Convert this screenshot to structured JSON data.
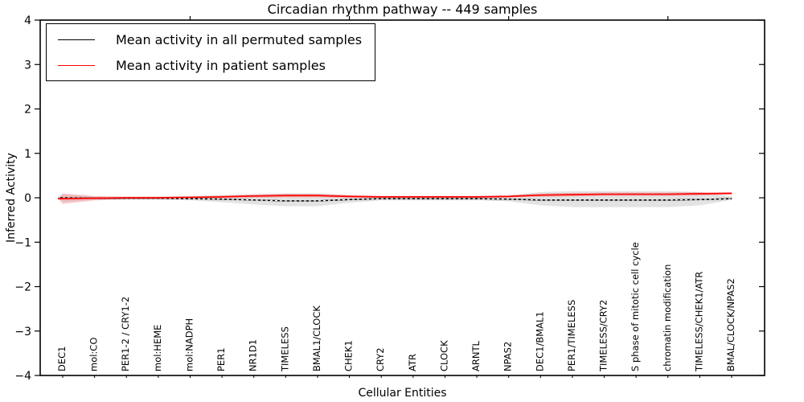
{
  "title": "Circadian rhythm pathway -- 449 samples",
  "legend": {
    "items": [
      {
        "label": "Mean activity in all permuted samples",
        "color": "#000000"
      },
      {
        "label": "Mean activity in patient samples",
        "color": "#ff0000"
      }
    ],
    "position": "upper left"
  },
  "chart_data": {
    "type": "line",
    "title": "Circadian rhythm pathway -- 449 samples",
    "xlabel": "Cellular Entities",
    "ylabel": "Inferred Activity",
    "ylim": [
      -4,
      4
    ],
    "ytick_values": [
      4,
      3,
      2,
      1,
      0,
      -1,
      -2,
      -3,
      -4
    ],
    "ytick_labels": [
      "4",
      "3",
      "2",
      "1",
      "0",
      "−1",
      "−2",
      "−3",
      "−4"
    ],
    "grid": false,
    "legend_position": "upper left",
    "categories": [
      "DEC1",
      "mol:CO",
      "PER1-2 / CRY1-2",
      "mol:HEME",
      "mol:NADPH",
      "PER1",
      "NR1D1",
      "TIMELESS",
      "BMAL1/CLOCK",
      "CHEK1",
      "CRY2",
      "ATR",
      "CLOCK",
      "ARNTL",
      "NPAS2",
      "DEC1/BMAL1",
      "PER1/TIMELESS",
      "TIMELESS/CRY2",
      "S phase of mitotic cell cycle",
      "chromatin modification",
      "TIMELESS/CHEK1/ATR",
      "BMAL/CLOCK/NPAS2"
    ],
    "top_tick_indices": [
      4,
      9,
      14,
      19
    ],
    "series": [
      {
        "name": "Mean activity in all permuted samples",
        "color": "#000000",
        "dash_overlay_color": "#ffffff",
        "band_color": "#d9d9d9",
        "band_opacity": 0.75,
        "values": [
          0,
          -0.01,
          -0.01,
          -0.01,
          -0.02,
          -0.03,
          -0.05,
          -0.07,
          -0.07,
          -0.04,
          -0.02,
          -0.02,
          -0.02,
          -0.02,
          -0.03,
          -0.05,
          -0.05,
          -0.05,
          -0.05,
          -0.05,
          -0.04,
          -0.02
        ],
        "band_upper": [
          0.08,
          0.03,
          0.03,
          0.03,
          0.04,
          0.06,
          0.08,
          0.1,
          0.1,
          0.06,
          0.04,
          0.04,
          0.04,
          0.04,
          0.05,
          0.13,
          0.15,
          0.15,
          0.15,
          0.15,
          0.13,
          0.03
        ],
        "band_lower": [
          -0.1,
          -0.05,
          -0.04,
          -0.04,
          -0.06,
          -0.1,
          -0.15,
          -0.19,
          -0.19,
          -0.11,
          -0.06,
          -0.06,
          -0.06,
          -0.06,
          -0.08,
          -0.17,
          -0.21,
          -0.21,
          -0.21,
          -0.21,
          -0.17,
          -0.05
        ]
      },
      {
        "name": "Mean activity in patient samples",
        "color": "#ff0000",
        "band_color": "#ff0000",
        "band_opacity": 0.18,
        "values": [
          -0.02,
          -0.01,
          0,
          0,
          0.01,
          0.02,
          0.04,
          0.05,
          0.05,
          0.03,
          0.02,
          0.02,
          0.02,
          0.02,
          0.03,
          0.06,
          0.07,
          0.08,
          0.08,
          0.08,
          0.09,
          0.1
        ],
        "band_upper": [
          0.1,
          0.04,
          0.02,
          0.02,
          0.03,
          0.05,
          0.08,
          0.09,
          0.09,
          0.06,
          0.04,
          0.04,
          0.04,
          0.04,
          0.06,
          0.1,
          0.11,
          0.12,
          0.12,
          0.12,
          0.13,
          0.13
        ],
        "band_lower": [
          -0.14,
          -0.06,
          -0.03,
          -0.02,
          -0.01,
          -0.01,
          0,
          0.01,
          0.01,
          0,
          0,
          0,
          0,
          0,
          0.01,
          0.02,
          0.03,
          0.04,
          0.04,
          0.04,
          0.05,
          0.07
        ]
      }
    ]
  }
}
